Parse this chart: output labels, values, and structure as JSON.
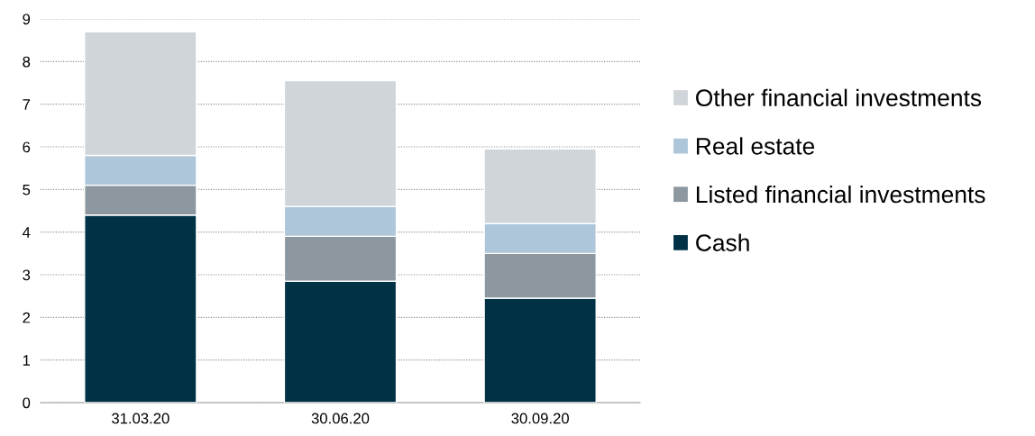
{
  "chart_data": {
    "type": "bar",
    "stacked": true,
    "categories": [
      "31.03.20",
      "30.06.20",
      "30.09.20"
    ],
    "series": [
      {
        "name": "Cash",
        "color": "#003145",
        "values": [
          4.4,
          2.85,
          2.45
        ]
      },
      {
        "name": "Listed financial investments",
        "color": "#8c979f",
        "values": [
          0.7,
          1.05,
          1.05
        ]
      },
      {
        "name": "Real estate",
        "color": "#adc6d9",
        "values": [
          0.7,
          0.7,
          0.7
        ]
      },
      {
        "name": "Other financial investments",
        "color": "#d0d5d9",
        "values": [
          2.9,
          2.95,
          1.75
        ]
      }
    ],
    "ylim": [
      0,
      9
    ],
    "yticks": [
      0,
      1,
      2,
      3,
      4,
      5,
      6,
      7,
      8,
      9
    ],
    "grid": "y",
    "legend": "right"
  }
}
